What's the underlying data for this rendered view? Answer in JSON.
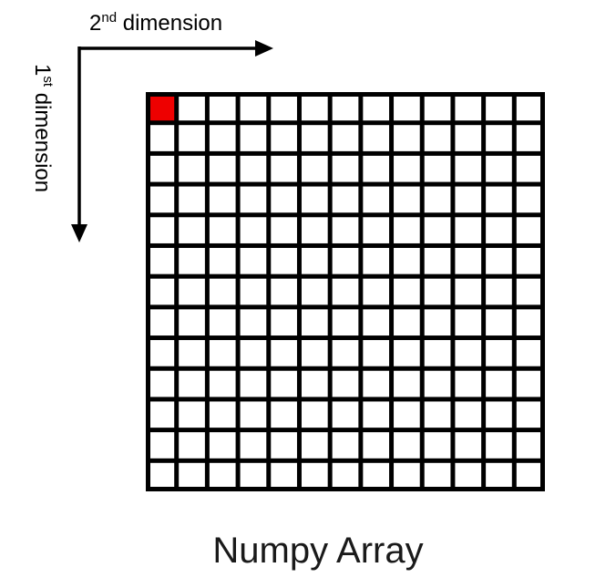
{
  "axes": {
    "dim2": {
      "number": "2",
      "suffix": "nd",
      "word": " dimension",
      "direction": "right"
    },
    "dim1": {
      "number": "1",
      "suffix": "st",
      "word": " dimension",
      "direction": "down"
    }
  },
  "grid": {
    "rows": 13,
    "cols": 13,
    "highlighted_cell": {
      "row": 0,
      "col": 0
    }
  },
  "caption": "Numpy Array",
  "colors": {
    "grid_line": "#000000",
    "cell_fill": "#ffffff",
    "highlight": "#ee0000",
    "text": "#000000"
  }
}
